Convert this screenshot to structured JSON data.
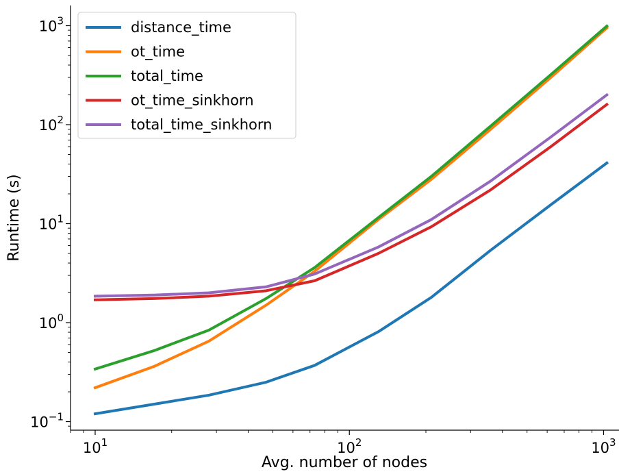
{
  "chart_data": {
    "type": "line",
    "xlabel": "Avg. number of nodes",
    "ylabel": "Runtime (s)",
    "xscale": "log",
    "yscale": "log",
    "xlim": [
      8.0,
      1150
    ],
    "ylim": [
      0.082,
      1600
    ],
    "x_major_ticks": [
      {
        "value": 10,
        "base": "10",
        "exp": "1"
      },
      {
        "value": 100,
        "base": "10",
        "exp": "2"
      },
      {
        "value": 1000,
        "base": "10",
        "exp": "3"
      }
    ],
    "y_major_ticks": [
      {
        "value": 0.1,
        "base": "10",
        "exp": "−1"
      },
      {
        "value": 1,
        "base": "10",
        "exp": "0"
      },
      {
        "value": 10,
        "base": "10",
        "exp": "1"
      },
      {
        "value": 100,
        "base": "10",
        "exp": "2"
      },
      {
        "value": 1000,
        "base": "10",
        "exp": "3"
      }
    ],
    "grid": false,
    "legend_position": "top-left",
    "x": [
      10,
      17,
      28,
      47,
      73,
      130,
      210,
      360,
      620,
      1030
    ],
    "series": [
      {
        "name": "distance_time",
        "color": "#1f77b4",
        "values": [
          0.12,
          0.15,
          0.185,
          0.25,
          0.37,
          0.81,
          1.8,
          5.4,
          15.5,
          41
        ]
      },
      {
        "name": "ot_time",
        "color": "#ff7f0e",
        "values": [
          0.22,
          0.36,
          0.65,
          1.5,
          3.3,
          11,
          28,
          90,
          300,
          950
        ]
      },
      {
        "name": "total_time",
        "color": "#2ca02c",
        "values": [
          0.34,
          0.52,
          0.84,
          1.75,
          3.6,
          11.5,
          30,
          97,
          320,
          990
        ]
      },
      {
        "name": "ot_time_sinkhorn",
        "color": "#d62728",
        "values": [
          1.7,
          1.75,
          1.85,
          2.1,
          2.65,
          5.0,
          9.3,
          22,
          60,
          160
        ]
      },
      {
        "name": "total_time_sinkhorn",
        "color": "#9467bd",
        "values": [
          1.85,
          1.9,
          2.0,
          2.3,
          3.1,
          5.8,
          11,
          27,
          75,
          200
        ]
      }
    ]
  }
}
